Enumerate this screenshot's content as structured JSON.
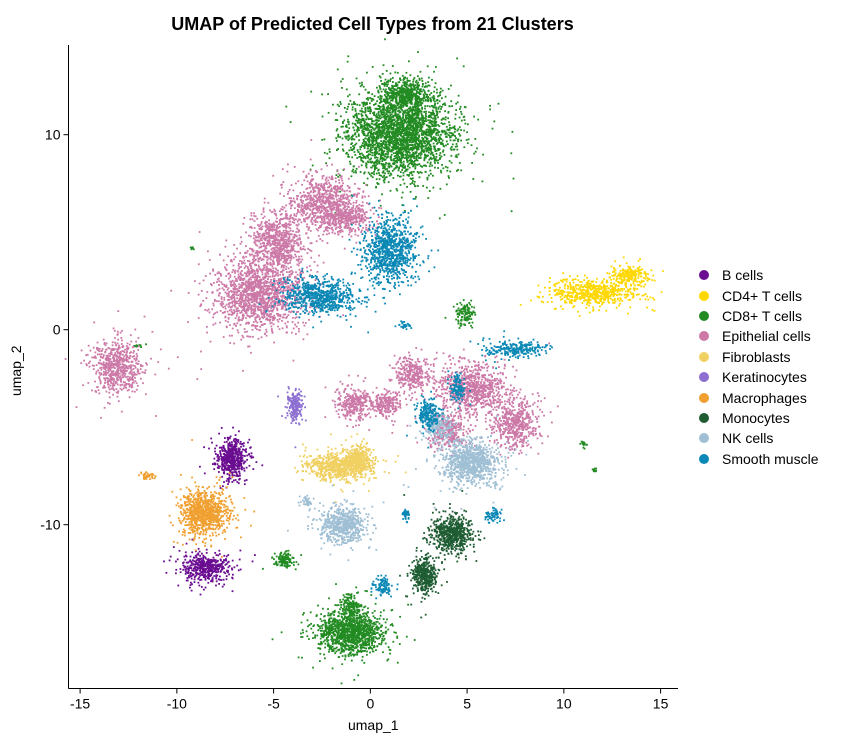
{
  "chart_data": {
    "type": "scatter",
    "title": "UMAP of Predicted Cell Types from 21 Clusters",
    "xlabel": "umap_1",
    "ylabel": "umap_2",
    "xlim": [
      -15.6,
      15.9
    ],
    "ylim": [
      -18.4,
      14.6
    ],
    "xticks": [
      -15,
      -10,
      -5,
      0,
      5,
      10,
      15
    ],
    "yticks": [
      -10,
      0,
      10
    ],
    "grid": false,
    "legend_position": "right",
    "series": [
      {
        "name": "B cells",
        "color": "#6a0d91",
        "clusters": [
          {
            "cx": -7.2,
            "cy": -6.6,
            "rx": 0.8,
            "ry": 1.0,
            "n": 520
          },
          {
            "cx": -8.5,
            "cy": -12.2,
            "rx": 1.3,
            "ry": 0.7,
            "n": 480
          }
        ]
      },
      {
        "name": "CD4+ T cells",
        "color": "#ffd700",
        "clusters": [
          {
            "cx": 11.6,
            "cy": 1.9,
            "rx": 2.2,
            "ry": 0.7,
            "n": 600
          },
          {
            "cx": 13.4,
            "cy": 2.8,
            "rx": 0.9,
            "ry": 0.5,
            "n": 200
          }
        ]
      },
      {
        "name": "CD8+ T cells",
        "color": "#228b22",
        "clusters": [
          {
            "cx": 1.5,
            "cy": 10.0,
            "rx": 2.7,
            "ry": 2.1,
            "n": 2600
          },
          {
            "cx": 1.8,
            "cy": 12.0,
            "rx": 1.2,
            "ry": 0.9,
            "n": 500
          },
          {
            "cx": -1.0,
            "cy": -15.5,
            "rx": 1.7,
            "ry": 1.1,
            "n": 1200
          },
          {
            "cx": -1.0,
            "cy": -14.2,
            "rx": 0.5,
            "ry": 0.6,
            "n": 150
          },
          {
            "cx": 4.9,
            "cy": 0.8,
            "rx": 0.5,
            "ry": 0.6,
            "n": 120
          },
          {
            "cx": -4.4,
            "cy": -11.8,
            "rx": 0.5,
            "ry": 0.4,
            "n": 120
          },
          {
            "cx": 11.0,
            "cy": -5.9,
            "rx": 0.15,
            "ry": 0.2,
            "n": 15
          },
          {
            "cx": 11.6,
            "cy": -7.2,
            "rx": 0.15,
            "ry": 0.15,
            "n": 12
          },
          {
            "cx": -12.0,
            "cy": -0.8,
            "rx": 0.2,
            "ry": 0.15,
            "n": 12
          },
          {
            "cx": -9.2,
            "cy": 4.2,
            "rx": 0.1,
            "ry": 0.1,
            "n": 6
          }
        ]
      },
      {
        "name": "Epithelial cells",
        "color": "#cc79a7",
        "clusters": [
          {
            "cx": -5.8,
            "cy": 1.8,
            "rx": 2.2,
            "ry": 1.8,
            "n": 1500
          },
          {
            "cx": -4.8,
            "cy": 4.5,
            "rx": 1.3,
            "ry": 1.4,
            "n": 700
          },
          {
            "cx": -2.4,
            "cy": 6.5,
            "rx": 1.8,
            "ry": 1.4,
            "n": 800
          },
          {
            "cx": -1.2,
            "cy": 5.7,
            "rx": 1.1,
            "ry": 0.7,
            "n": 300
          },
          {
            "cx": -13.1,
            "cy": -1.9,
            "rx": 1.2,
            "ry": 1.4,
            "n": 620
          },
          {
            "cx": 5.2,
            "cy": -3.0,
            "rx": 1.8,
            "ry": 1.2,
            "n": 800
          },
          {
            "cx": 7.5,
            "cy": -4.8,
            "rx": 1.2,
            "ry": 1.3,
            "n": 500
          },
          {
            "cx": 2.2,
            "cy": -2.3,
            "rx": 0.9,
            "ry": 0.9,
            "n": 300
          },
          {
            "cx": -0.8,
            "cy": -3.8,
            "rx": 0.9,
            "ry": 0.8,
            "n": 300
          },
          {
            "cx": 0.8,
            "cy": -3.8,
            "rx": 0.7,
            "ry": 0.7,
            "n": 200
          },
          {
            "cx": 4.0,
            "cy": -5.2,
            "rx": 1.0,
            "ry": 0.9,
            "n": 300
          }
        ]
      },
      {
        "name": "Fibroblasts",
        "color": "#f0d060",
        "clusters": [
          {
            "cx": -1.6,
            "cy": -7.0,
            "rx": 1.6,
            "ry": 0.7,
            "n": 700
          },
          {
            "cx": -0.6,
            "cy": -6.7,
            "rx": 0.6,
            "ry": 0.8,
            "n": 250
          }
        ]
      },
      {
        "name": "Keratinocytes",
        "color": "#8c6fd1",
        "clusters": [
          {
            "cx": -3.9,
            "cy": -3.9,
            "rx": 0.4,
            "ry": 0.7,
            "n": 200
          }
        ]
      },
      {
        "name": "Macrophages",
        "color": "#f0a030",
        "clusters": [
          {
            "cx": -8.6,
            "cy": -9.4,
            "rx": 1.2,
            "ry": 1.1,
            "n": 900
          },
          {
            "cx": -11.5,
            "cy": -7.5,
            "rx": 0.4,
            "ry": 0.2,
            "n": 40
          }
        ]
      },
      {
        "name": "Monocytes",
        "color": "#1f5c33",
        "clusters": [
          {
            "cx": 4.2,
            "cy": -10.5,
            "rx": 1.0,
            "ry": 0.9,
            "n": 600
          },
          {
            "cx": 2.8,
            "cy": -12.6,
            "rx": 0.6,
            "ry": 0.9,
            "n": 400
          }
        ]
      },
      {
        "name": "NK cells",
        "color": "#9fbfd4",
        "clusters": [
          {
            "cx": -1.4,
            "cy": -10.0,
            "rx": 1.2,
            "ry": 0.9,
            "n": 600
          },
          {
            "cx": 5.2,
            "cy": -6.8,
            "rx": 1.4,
            "ry": 1.1,
            "n": 900
          },
          {
            "cx": 3.5,
            "cy": -5.0,
            "rx": 0.7,
            "ry": 0.7,
            "n": 200
          },
          {
            "cx": -3.3,
            "cy": -8.8,
            "rx": 0.3,
            "ry": 0.2,
            "n": 40
          }
        ]
      },
      {
        "name": "Smooth muscle",
        "color": "#0b88b5",
        "clusters": [
          {
            "cx": 1.0,
            "cy": 4.0,
            "rx": 1.4,
            "ry": 1.6,
            "n": 900
          },
          {
            "cx": -2.6,
            "cy": 1.7,
            "rx": 1.8,
            "ry": 0.9,
            "n": 700
          },
          {
            "cx": 7.5,
            "cy": -1.0,
            "rx": 1.6,
            "ry": 0.4,
            "n": 250
          },
          {
            "cx": 3.0,
            "cy": -4.3,
            "rx": 0.6,
            "ry": 0.8,
            "n": 200
          },
          {
            "cx": 4.5,
            "cy": -3.0,
            "rx": 0.4,
            "ry": 0.7,
            "n": 120
          },
          {
            "cx": 0.6,
            "cy": -13.1,
            "rx": 0.5,
            "ry": 0.4,
            "n": 100
          },
          {
            "cx": 6.3,
            "cy": -9.5,
            "rx": 0.4,
            "ry": 0.4,
            "n": 60
          },
          {
            "cx": 1.8,
            "cy": -9.5,
            "rx": 0.2,
            "ry": 0.3,
            "n": 40
          },
          {
            "cx": 1.8,
            "cy": 0.2,
            "rx": 0.3,
            "ry": 0.2,
            "n": 30
          }
        ]
      }
    ]
  }
}
